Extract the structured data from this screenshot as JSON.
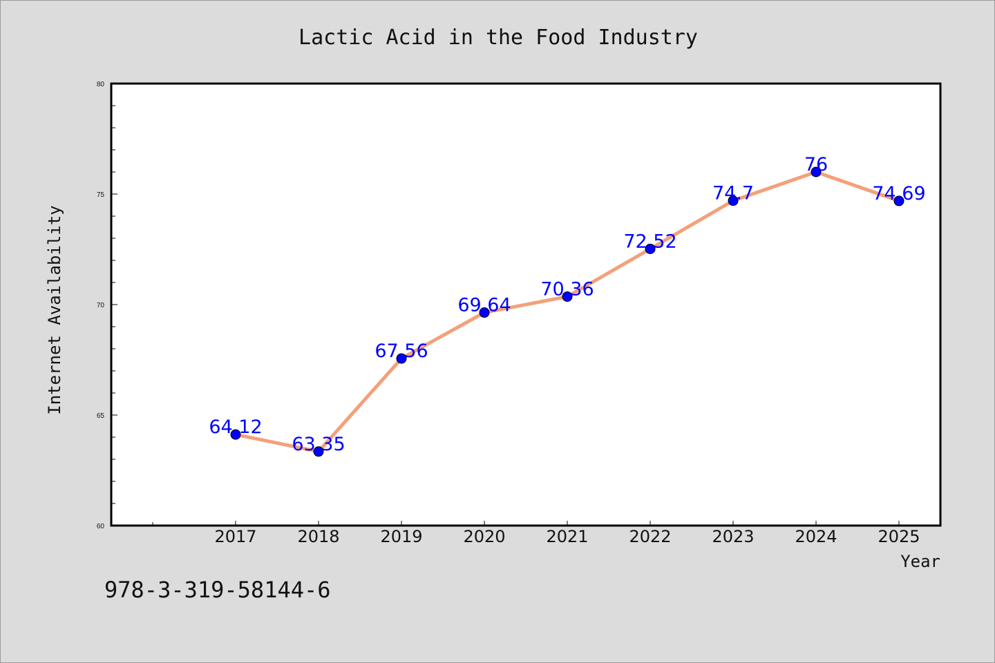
{
  "chart_data": {
    "type": "line",
    "title": "Lactic Acid in the Food Industry",
    "xlabel": "Year",
    "ylabel": "Internet Availability",
    "categories": [
      "2017",
      "2018",
      "2019",
      "2020",
      "2021",
      "2022",
      "2023",
      "2024",
      "2025"
    ],
    "series": [
      {
        "values": [
          64.12,
          63.35,
          67.56,
          69.64,
          70.36,
          72.52,
          74.7,
          76,
          74.69
        ],
        "labels": [
          "64.12",
          "63.35",
          "67.56",
          "69.64",
          "70.36",
          "72.52",
          "74.7",
          "76",
          "74.69"
        ]
      }
    ],
    "ylim": [
      60,
      80
    ],
    "yticks": [
      "60",
      "65",
      "70",
      "75",
      "80"
    ],
    "grid": false,
    "colors": {
      "line": "#f4a07a",
      "marker": "#0000ff",
      "label": "#0000ff",
      "background": "#dcdcdc",
      "plot_background": "#ffffff"
    }
  },
  "footer": {
    "identifier": "978-3-319-58144-6"
  }
}
